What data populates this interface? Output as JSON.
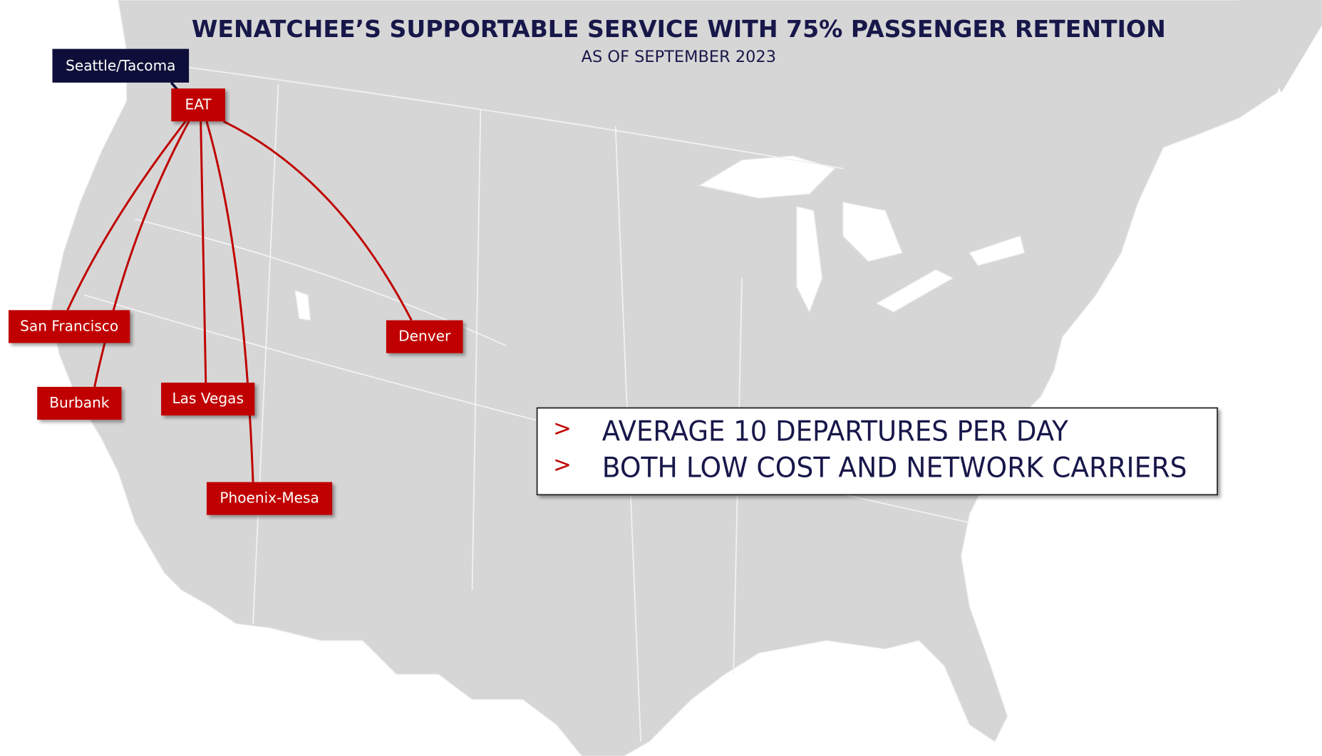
{
  "header": {
    "title": "WENATCHEE’S SUPPORTABLE SERVICE WITH 75% PASSENGER RETENTION",
    "subtitle": "AS OF SEPTEMBER 2023"
  },
  "map": {
    "connecting_hub": "Seattle/Tacoma",
    "hub": "EAT",
    "destinations": [
      "San Francisco",
      "Burbank",
      "Las Vegas",
      "Phoenix-Mesa",
      "Denver"
    ]
  },
  "callout": {
    "marker": ">",
    "items": [
      "AVERAGE 10 DEPARTURES PER DAY",
      "BOTH LOW COST AND NETWORK CARRIERS"
    ]
  }
}
